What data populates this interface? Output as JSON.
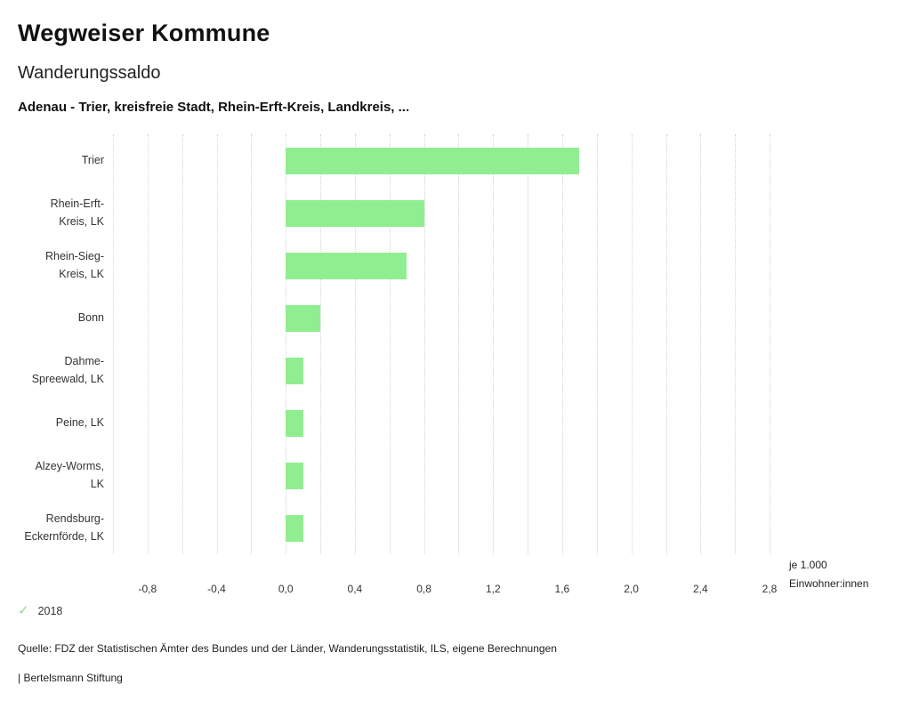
{
  "header": {
    "title": "Wegweiser Kommune",
    "subtitle": "Wanderungssaldo",
    "selection": "Adenau - Trier, kreisfreie Stadt, Rhein-Erft-Kreis, Landkreis, ..."
  },
  "chart_data": {
    "type": "bar",
    "orientation": "horizontal",
    "title": "Wanderungssaldo",
    "categories": [
      "Trier",
      "Rhein-Erft-Kreis, LK",
      "Rhein-Sieg-Kreis, LK",
      "Bonn",
      "Dahme-Spreewald, LK",
      "Peine, LK",
      "Alzey-Worms, LK",
      "Rendsburg-Eckernförde, LK"
    ],
    "values": [
      1.7,
      0.8,
      0.7,
      0.2,
      0.1,
      0.1,
      0.1,
      0.1
    ],
    "xlim": [
      -1.0,
      2.8
    ],
    "xtick_values": [
      -0.8,
      -0.4,
      0.0,
      0.4,
      0.8,
      1.2,
      1.6,
      2.0,
      2.4,
      2.8
    ],
    "xtick_labels": [
      "-0,8",
      "-0,4",
      "0,0",
      "0,4",
      "0,8",
      "1,2",
      "1,6",
      "2,0",
      "2,4",
      "2,8"
    ],
    "grid": "vertical-dotted",
    "gridline_step": 0.2,
    "bar_color": "#90ee90",
    "unit_label_line1": "je 1.000",
    "unit_label_line2": "Einwohner:innen",
    "series_year": "2018",
    "legend_position": "bottom-left"
  },
  "legend": {
    "check_icon": "✓",
    "year": "2018"
  },
  "footer": {
    "source": "Quelle: FDZ der Statistischen Ämter des Bundes und der Länder, Wanderungsstatistik, ILS, eigene Berechnungen",
    "branding": "| Bertelsmann Stiftung"
  }
}
